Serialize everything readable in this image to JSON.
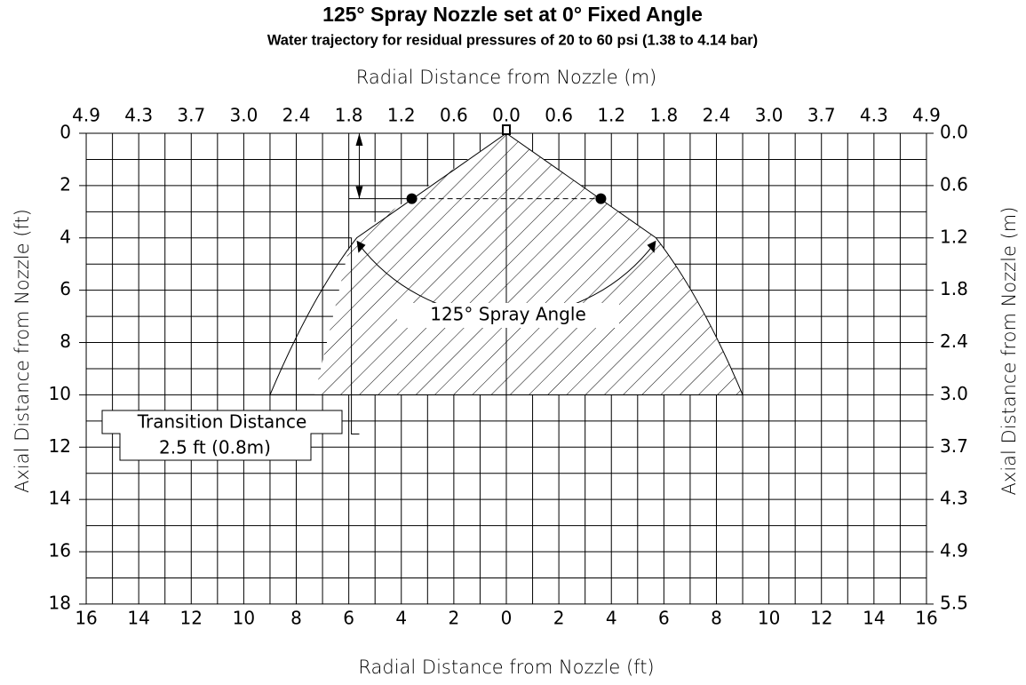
{
  "title": "125° Spray Nozzle set at 0° Fixed Angle",
  "subtitle": "Water trajectory for residual pressures of 20 to 60 psi (1.38 to 4.14 bar)",
  "top_axis": {
    "label": "Radial Distance from Nozzle (m)",
    "ticks": [
      "4.9",
      "4.3",
      "3.7",
      "3.0",
      "2.4",
      "1.8",
      "1.2",
      "0.6",
      "0.0",
      "0.6",
      "1.2",
      "1.8",
      "2.4",
      "3.0",
      "3.7",
      "4.3",
      "4.9"
    ]
  },
  "bottom_axis": {
    "label": "Radial Distance from Nozzle (ft)",
    "ticks": [
      16,
      14,
      12,
      10,
      8,
      6,
      4,
      2,
      0,
      2,
      4,
      6,
      8,
      10,
      12,
      14,
      16
    ]
  },
  "left_axis": {
    "label": "Axial Distance from Nozzle (ft)",
    "ticks": [
      0,
      2,
      4,
      6,
      8,
      10,
      12,
      14,
      16,
      18
    ]
  },
  "right_axis": {
    "label": "Axial Distance from Nozzle (m)",
    "ticks": [
      "0.0",
      "0.6",
      "1.2",
      "1.8",
      "2.4",
      "3.0",
      "3.7",
      "4.3",
      "4.9",
      "5.5"
    ]
  },
  "annotations": {
    "spray_angle": "125° Spray Angle",
    "transition_label": "Transition Distance",
    "transition_value": "2.5 ft (0.8m)"
  }
}
